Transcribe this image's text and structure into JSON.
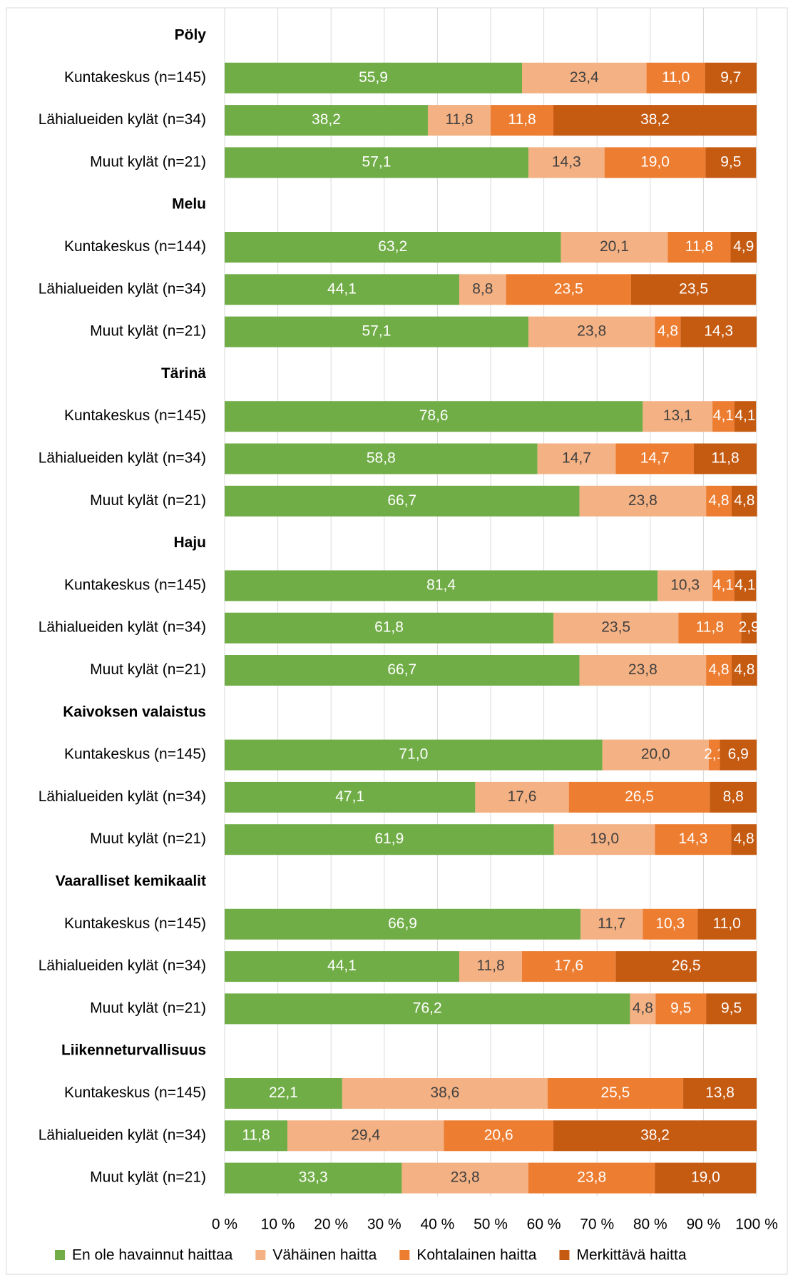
{
  "chart_data": {
    "type": "stacked_bar_horizontal",
    "groups": [
      "Pöly",
      "Melu",
      "Tärinä",
      "Haju",
      "Kaivoksen valaistus",
      "Vaaralliset kemikaalit",
      "Liikenneturvallisuus"
    ],
    "categories": [
      "Kuntakeskus (n=145)",
      "Lähialueiden kylät (n=34)",
      "Muut kylät (n=21)",
      "Kuntakeskus (n=144)",
      "Lähialueiden kylät (n=34)",
      "Muut kylät (n=21)",
      "Kuntakeskus (n=145)",
      "Lähialueiden kylät (n=34)",
      "Muut kylät (n=21)",
      "Kuntakeskus (n=145)",
      "Lähialueiden kylät (n=34)",
      "Muut kylät (n=21)",
      "Kuntakeskus (n=145)",
      "Lähialueiden kylät (n=34)",
      "Muut kylät (n=21)",
      "Kuntakeskus (n=145)",
      "Lähialueiden kylät (n=34)",
      "Muut kylät (n=21)",
      "Kuntakeskus (n=145)",
      "Lähialueiden kylät (n=34)",
      "Muut kylät (n=21)"
    ],
    "series": [
      {
        "name": "En ole havainnut haittaa",
        "color": "#70ad47",
        "label_color": "#ffffff",
        "values": [
          55.9,
          38.2,
          57.1,
          63.2,
          44.1,
          57.1,
          78.6,
          58.8,
          66.7,
          81.4,
          61.8,
          66.7,
          71.0,
          47.1,
          61.9,
          66.9,
          44.1,
          76.2,
          22.1,
          11.8,
          33.3
        ],
        "value_labels": [
          "55,9",
          "38,2",
          "57,1",
          "63,2",
          "44,1",
          "57,1",
          "78,6",
          "58,8",
          "66,7",
          "81,4",
          "61,8",
          "66,7",
          "71,0",
          "47,1",
          "61,9",
          "66,9",
          "44,1",
          "76,2",
          "22,1",
          "11,8",
          "33,3"
        ]
      },
      {
        "name": "Vähäinen haitta",
        "color": "#f4b183",
        "label_color": "#404040",
        "values": [
          23.4,
          11.8,
          14.3,
          20.1,
          8.8,
          23.8,
          13.1,
          14.7,
          23.8,
          10.3,
          23.5,
          23.8,
          20.0,
          17.6,
          19.0,
          11.7,
          11.8,
          4.8,
          38.6,
          29.4,
          23.8
        ],
        "value_labels": [
          "23,4",
          "11,8",
          "14,3",
          "20,1",
          "8,8",
          "23,8",
          "13,1",
          "14,7",
          "23,8",
          "10,3",
          "23,5",
          "23,8",
          "20,0",
          "17,6",
          "19,0",
          "11,7",
          "11,8",
          "4,8",
          "38,6",
          "29,4",
          "23,8"
        ]
      },
      {
        "name": "Kohtalainen haitta",
        "color": "#ed7d31",
        "label_color": "#ffffff",
        "values": [
          11.0,
          11.8,
          19.0,
          11.8,
          23.5,
          4.8,
          4.1,
          14.7,
          4.8,
          4.1,
          11.8,
          4.8,
          2.1,
          26.5,
          14.3,
          10.3,
          17.6,
          9.5,
          25.5,
          20.6,
          23.8
        ],
        "value_labels": [
          "11,0",
          "11,8",
          "19,0",
          "11,8",
          "23,5",
          "4,8",
          "4,1",
          "14,7",
          "4,8",
          "4,1",
          "11,8",
          "4,8",
          "2,1",
          "26,5",
          "14,3",
          "10,3",
          "17,6",
          "9,5",
          "25,5",
          "20,6",
          "23,8"
        ]
      },
      {
        "name": "Merkittävä haitta",
        "color": "#c55a11",
        "label_color": "#ffffff",
        "values": [
          9.7,
          38.2,
          9.5,
          4.9,
          23.5,
          14.3,
          4.1,
          11.8,
          4.8,
          4.1,
          2.9,
          4.8,
          6.9,
          8.8,
          4.8,
          11.0,
          26.5,
          9.5,
          13.8,
          38.2,
          19.0
        ],
        "value_labels": [
          "9,7",
          "38,2",
          "9,5",
          "4,9",
          "23,5",
          "14,3",
          "4,1",
          "11,8",
          "4,8",
          "4,1",
          "2,9",
          "4,8",
          "6,9",
          "8,8",
          "4,8",
          "11,0",
          "26,5",
          "9,5",
          "13,8",
          "38,2",
          "19,0"
        ]
      }
    ],
    "xlim": [
      0,
      100
    ],
    "xticks": [
      {
        "value": 0,
        "label": "0 %"
      },
      {
        "value": 10,
        "label": "10 %"
      },
      {
        "value": 20,
        "label": "20 %"
      },
      {
        "value": 30,
        "label": "30 %"
      },
      {
        "value": 40,
        "label": "40 %"
      },
      {
        "value": 50,
        "label": "50 %"
      },
      {
        "value": 60,
        "label": "60 %"
      },
      {
        "value": 70,
        "label": "70 %"
      },
      {
        "value": 80,
        "label": "80 %"
      },
      {
        "value": 90,
        "label": "90 %"
      },
      {
        "value": 100,
        "label": "100 %"
      }
    ],
    "grid": true,
    "legend": "bottom"
  }
}
